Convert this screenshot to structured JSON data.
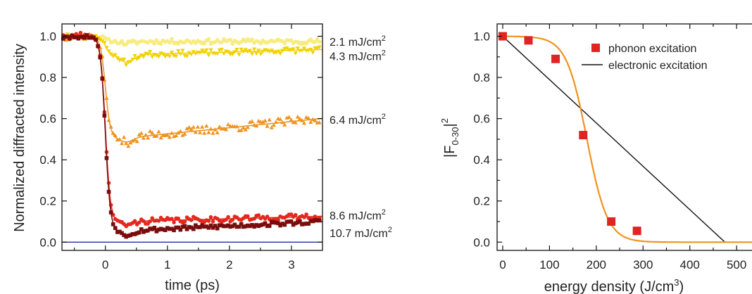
{
  "chart_data": [
    {
      "type": "scatter",
      "xlabel": "time (ps)",
      "ylabel": "Normalized diffracted intensity",
      "xlim": [
        -0.7,
        3.5
      ],
      "ylim": [
        -0.04,
        1.06
      ],
      "xticks": [
        "0",
        "1",
        "2",
        "3"
      ],
      "yticks": [
        "0.0",
        "0.2",
        "0.4",
        "0.6",
        "0.8",
        "1.0"
      ],
      "baseline": {
        "y": 0.0,
        "color": "#1f2fa0"
      },
      "series": [
        {
          "name": "2.1 mJ/cm",
          "superscript": "2",
          "color": "#f7ec7d",
          "marker": "circle",
          "final": 0.975,
          "drop_scale": 0.06,
          "rate": 0.0,
          "noise": 0.012,
          "seed": 11
        },
        {
          "name": "4.3 mJ/cm",
          "superscript": "2",
          "color": "#f2d200",
          "marker": "triangle-down",
          "final": 0.91,
          "drop_scale": 0.25,
          "rate": 0.008,
          "noise": 0.014,
          "seed": 23
        },
        {
          "name": "6.4 mJ/cm",
          "superscript": "2",
          "color": "#ef9420",
          "marker": "triangle-up",
          "final": 0.505,
          "drop_scale": 0.13,
          "rate": 0.03,
          "noise": 0.022,
          "seed": 37
        },
        {
          "name": "8.6 mJ/cm",
          "superscript": "2",
          "color": "#e3281e",
          "marker": "circle",
          "final": 0.1,
          "drop_scale": 0.11,
          "rate": 0.008,
          "noise": 0.014,
          "seed": 41
        },
        {
          "name": "10.7 mJ/cm",
          "superscript": "2",
          "color": "#7a0c0c",
          "marker": "square",
          "final": 0.055,
          "drop_scale": 0.13,
          "rate": 0.014,
          "noise": 0.011,
          "seed": 53
        }
      ]
    },
    {
      "type": "scatter",
      "xlabel": "energy density (J/cm",
      "xlabel_sup": "3",
      "xlabel_tail": ")",
      "ylabel": "|F",
      "ylabel_sub": "0-30",
      "ylabel_tail": "|",
      "ylabel_sup": "2",
      "xlim": [
        -12,
        560
      ],
      "ylim": [
        -0.04,
        1.06
      ],
      "xticks": [
        "0",
        "100",
        "200",
        "300",
        "400",
        "500"
      ],
      "yticks": [
        "0.0",
        "0.2",
        "0.4",
        "0.6",
        "0.8",
        "1.0"
      ],
      "series": [
        {
          "name": "phonon excitation",
          "color": "#e02424",
          "marker": "square",
          "x": [
            0,
            55,
            113,
            172,
            232,
            287
          ],
          "y": [
            1.0,
            0.98,
            0.89,
            0.52,
            0.1,
            0.055
          ]
        },
        {
          "name": "electronic excitation",
          "color": "#111111",
          "marker": "line",
          "x": [
            0,
            475
          ],
          "y": [
            1.0,
            0.0
          ]
        },
        {
          "name": "",
          "color": "#f0921e",
          "marker": "fit",
          "center": 180,
          "width": 22
        }
      ]
    }
  ]
}
